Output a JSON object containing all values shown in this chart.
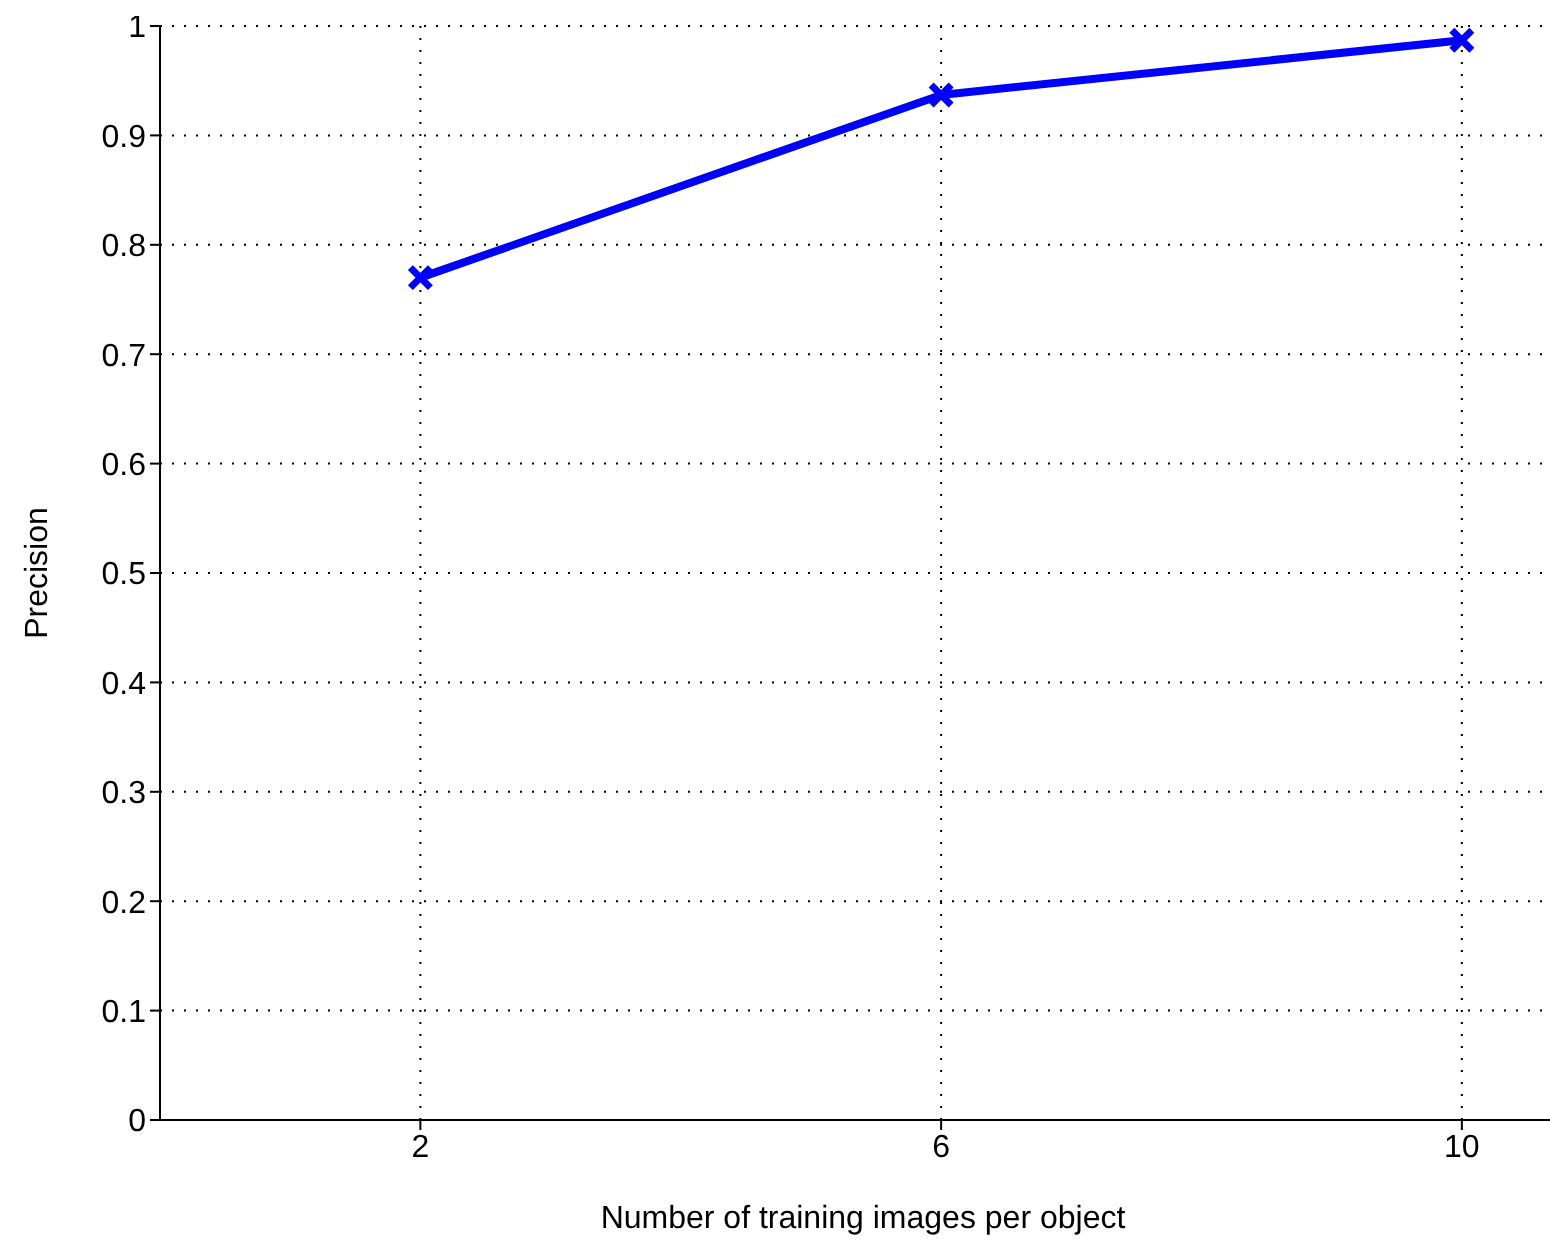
{
  "chart_data": {
    "type": "line",
    "xlabel": "Number of training images per object",
    "ylabel": "Precision",
    "x": [
      2,
      6,
      10
    ],
    "series": [
      {
        "color": "#0000ff",
        "values": [
          0.77,
          0.937,
          0.987
        ]
      }
    ],
    "xlim": [
      0,
      10.8
    ],
    "xticks": [
      2,
      6,
      10
    ],
    "ylim": [
      0,
      1
    ],
    "yticks": [
      0,
      0.1,
      0.2,
      0.3,
      0.4,
      0.5,
      0.6,
      0.7,
      0.8,
      0.9,
      1
    ],
    "grid": true,
    "marker": "cross",
    "line_style": "solid"
  }
}
